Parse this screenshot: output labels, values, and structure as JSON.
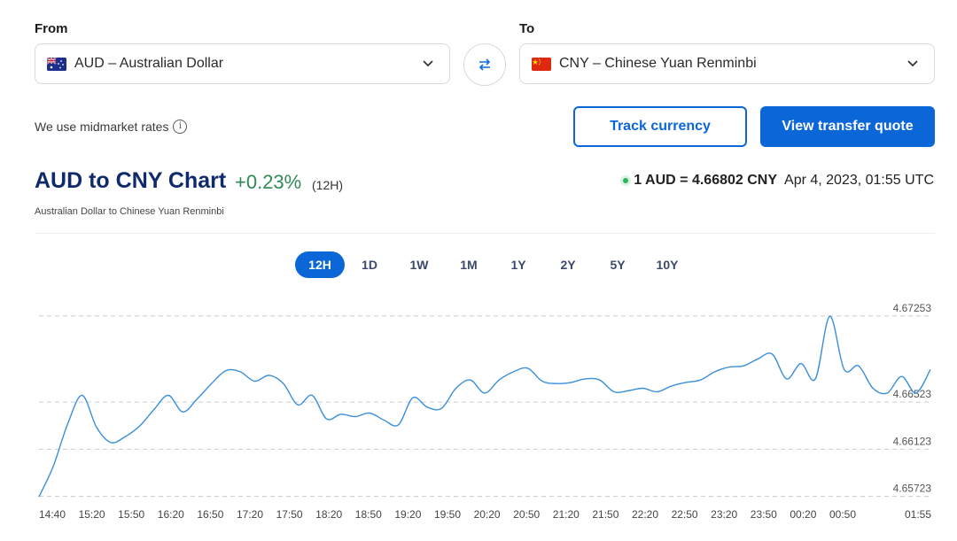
{
  "from": {
    "label": "From",
    "value": "AUD – Australian Dollar",
    "flag": "australia-flag"
  },
  "to": {
    "label": "To",
    "value": "CNY – Chinese Yuan Renminbi",
    "flag": "china-flag"
  },
  "midmarket_text": "We use midmarket rates",
  "buttons": {
    "track": "Track currency",
    "quote": "View transfer quote"
  },
  "header": {
    "title": "AUD to CNY Chart",
    "change": "+0.23%",
    "period": "(12H)",
    "subtitle": "Australian Dollar to Chinese Yuan Renminbi",
    "rate_value": "1 AUD = 4.66802 CNY",
    "rate_time": "Apr 4, 2023, 01:55 UTC"
  },
  "tabs": [
    "12H",
    "1D",
    "1W",
    "1M",
    "1Y",
    "2Y",
    "5Y",
    "10Y"
  ],
  "active_tab": "12H",
  "colors": {
    "accent": "#0b66d8",
    "positive": "#2e8b57",
    "line": "#3a8fd9",
    "title": "#102a6b"
  },
  "chart_data": {
    "type": "line",
    "x_ticks": [
      "14:40",
      "15:20",
      "15:50",
      "16:20",
      "16:50",
      "17:20",
      "17:50",
      "18:20",
      "18:50",
      "19:20",
      "19:50",
      "20:20",
      "20:50",
      "21:20",
      "21:50",
      "22:20",
      "22:50",
      "23:20",
      "23:50",
      "00:20",
      "00:50",
      "01:55"
    ],
    "y_ticks": [
      4.67253,
      4.66523,
      4.66123,
      4.65723
    ],
    "ylim": [
      4.6569,
      4.6729
    ],
    "grid": "horizontal dashed",
    "values": [
      4.6572,
      4.6598,
      4.6634,
      4.6658,
      4.6631,
      4.6618,
      4.6623,
      4.6632,
      4.6646,
      4.6658,
      4.6644,
      4.6655,
      4.6668,
      4.6679,
      4.6678,
      4.667,
      4.6675,
      4.6668,
      4.665,
      4.6658,
      4.6638,
      4.6642,
      4.664,
      4.6643,
      4.6637,
      4.6633,
      4.6656,
      4.6648,
      4.6647,
      4.6664,
      4.6671,
      4.666,
      4.6671,
      4.6678,
      4.6681,
      4.667,
      4.6668,
      4.6669,
      4.6672,
      4.6671,
      4.6661,
      4.6662,
      4.6664,
      4.6661,
      4.6666,
      4.6669,
      4.6671,
      4.6678,
      4.6682,
      4.6683,
      4.6689,
      4.6693,
      4.6672,
      4.6685,
      4.6672,
      4.6725,
      4.668,
      4.6683,
      4.6664,
      4.666,
      4.6674,
      4.666,
      4.668
    ]
  }
}
